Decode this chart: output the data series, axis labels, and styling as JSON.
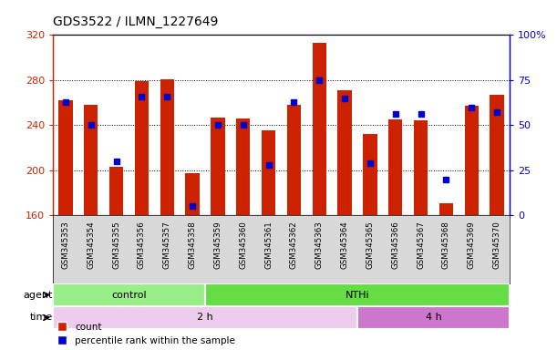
{
  "title": "GDS3522 / ILMN_1227649",
  "samples": [
    "GSM345353",
    "GSM345354",
    "GSM345355",
    "GSM345356",
    "GSM345357",
    "GSM345358",
    "GSM345359",
    "GSM345360",
    "GSM345361",
    "GSM345362",
    "GSM345363",
    "GSM345364",
    "GSM345365",
    "GSM345366",
    "GSM345367",
    "GSM345368",
    "GSM345369",
    "GSM345370"
  ],
  "count_values": [
    262,
    258,
    203,
    279,
    281,
    197,
    247,
    246,
    235,
    258,
    313,
    271,
    232,
    245,
    244,
    171,
    257,
    267
  ],
  "percentile_values": [
    63,
    50,
    30,
    66,
    66,
    5,
    50,
    50,
    28,
    63,
    75,
    65,
    29,
    56,
    56,
    20,
    60,
    57
  ],
  "y_min": 160,
  "y_max": 320,
  "y_ticks_left": [
    160,
    200,
    240,
    280,
    320
  ],
  "y_ticks_right": [
    0,
    25,
    50,
    75,
    100
  ],
  "bar_color": "#cc2200",
  "marker_color": "#0000cc",
  "agent_groups": [
    {
      "label": "control",
      "start": 0,
      "end": 6,
      "color": "#99ee88"
    },
    {
      "label": "NTHi",
      "start": 6,
      "end": 18,
      "color": "#66dd44"
    }
  ],
  "time_groups": [
    {
      "label": "2 h",
      "start": 0,
      "end": 12,
      "color": "#eeccee"
    },
    {
      "label": "4 h",
      "start": 12,
      "end": 18,
      "color": "#cc77cc"
    }
  ],
  "legend_items": [
    {
      "label": "count",
      "color": "#cc2200"
    },
    {
      "label": "percentile rank within the sample",
      "color": "#0000cc"
    }
  ],
  "xtick_bg": "#d8d8d8",
  "plot_bg_color": "#ffffff",
  "grid_color": "#000000"
}
